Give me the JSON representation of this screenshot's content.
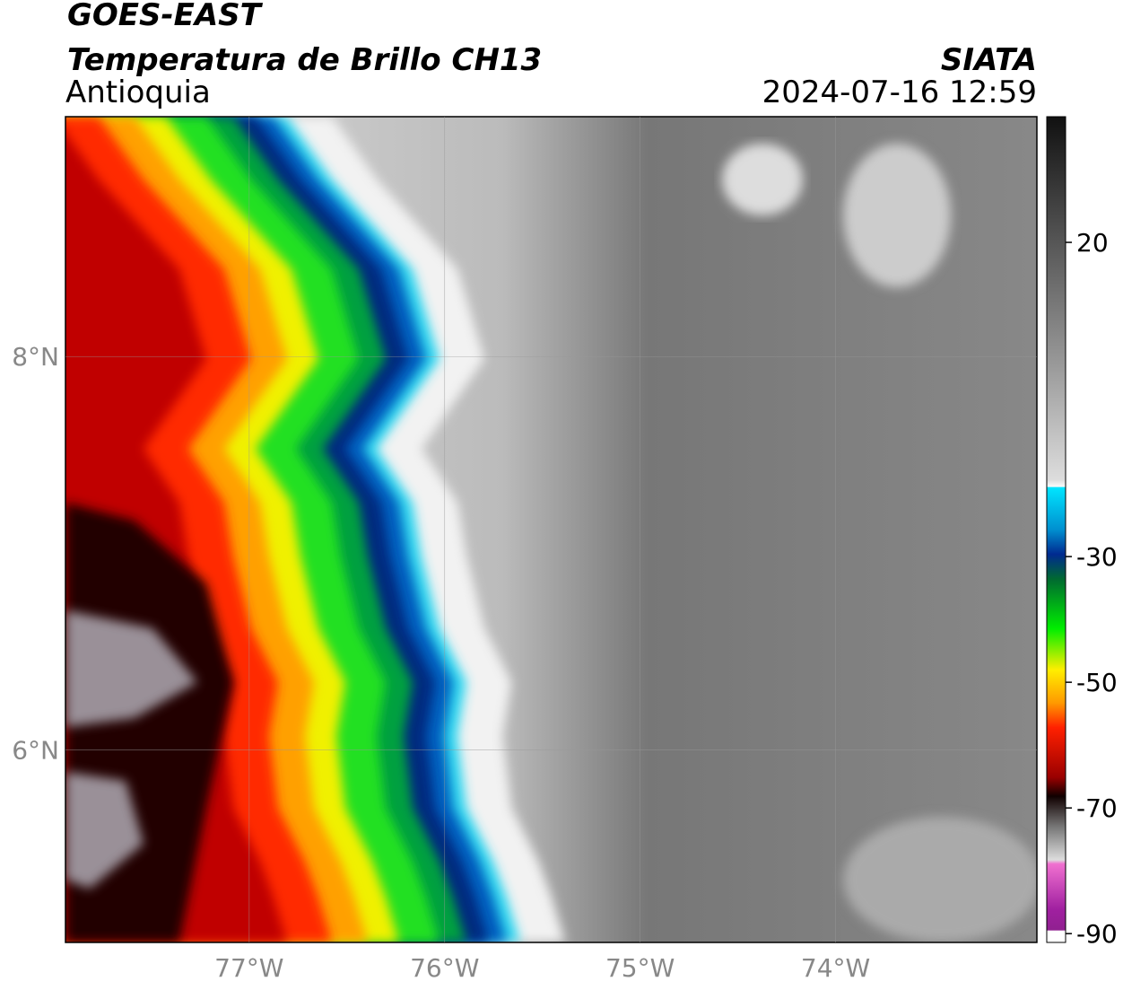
{
  "header": {
    "line1": "GOES-EAST",
    "line2": "Temperatura de Brillo CH13",
    "region": "Antioquia",
    "source": "SIATA",
    "datetime": "2024-07-16 12:59"
  },
  "map": {
    "xlim": [
      -77.94,
      -72.97
    ],
    "ylim": [
      5.02,
      9.22
    ],
    "xticks": [
      {
        "value": -77,
        "label": "77°W"
      },
      {
        "value": -76,
        "label": "76°W"
      },
      {
        "value": -75,
        "label": "75°W"
      },
      {
        "value": -74,
        "label": "74°W"
      }
    ],
    "yticks": [
      {
        "value": 8,
        "label": "8°N"
      },
      {
        "value": 6,
        "label": "6°N"
      }
    ],
    "grid": true
  },
  "colorbar": {
    "lim": [
      -91.4,
      40
    ],
    "ticks": [
      20,
      -30,
      -50,
      -70,
      -90
    ]
  }
}
